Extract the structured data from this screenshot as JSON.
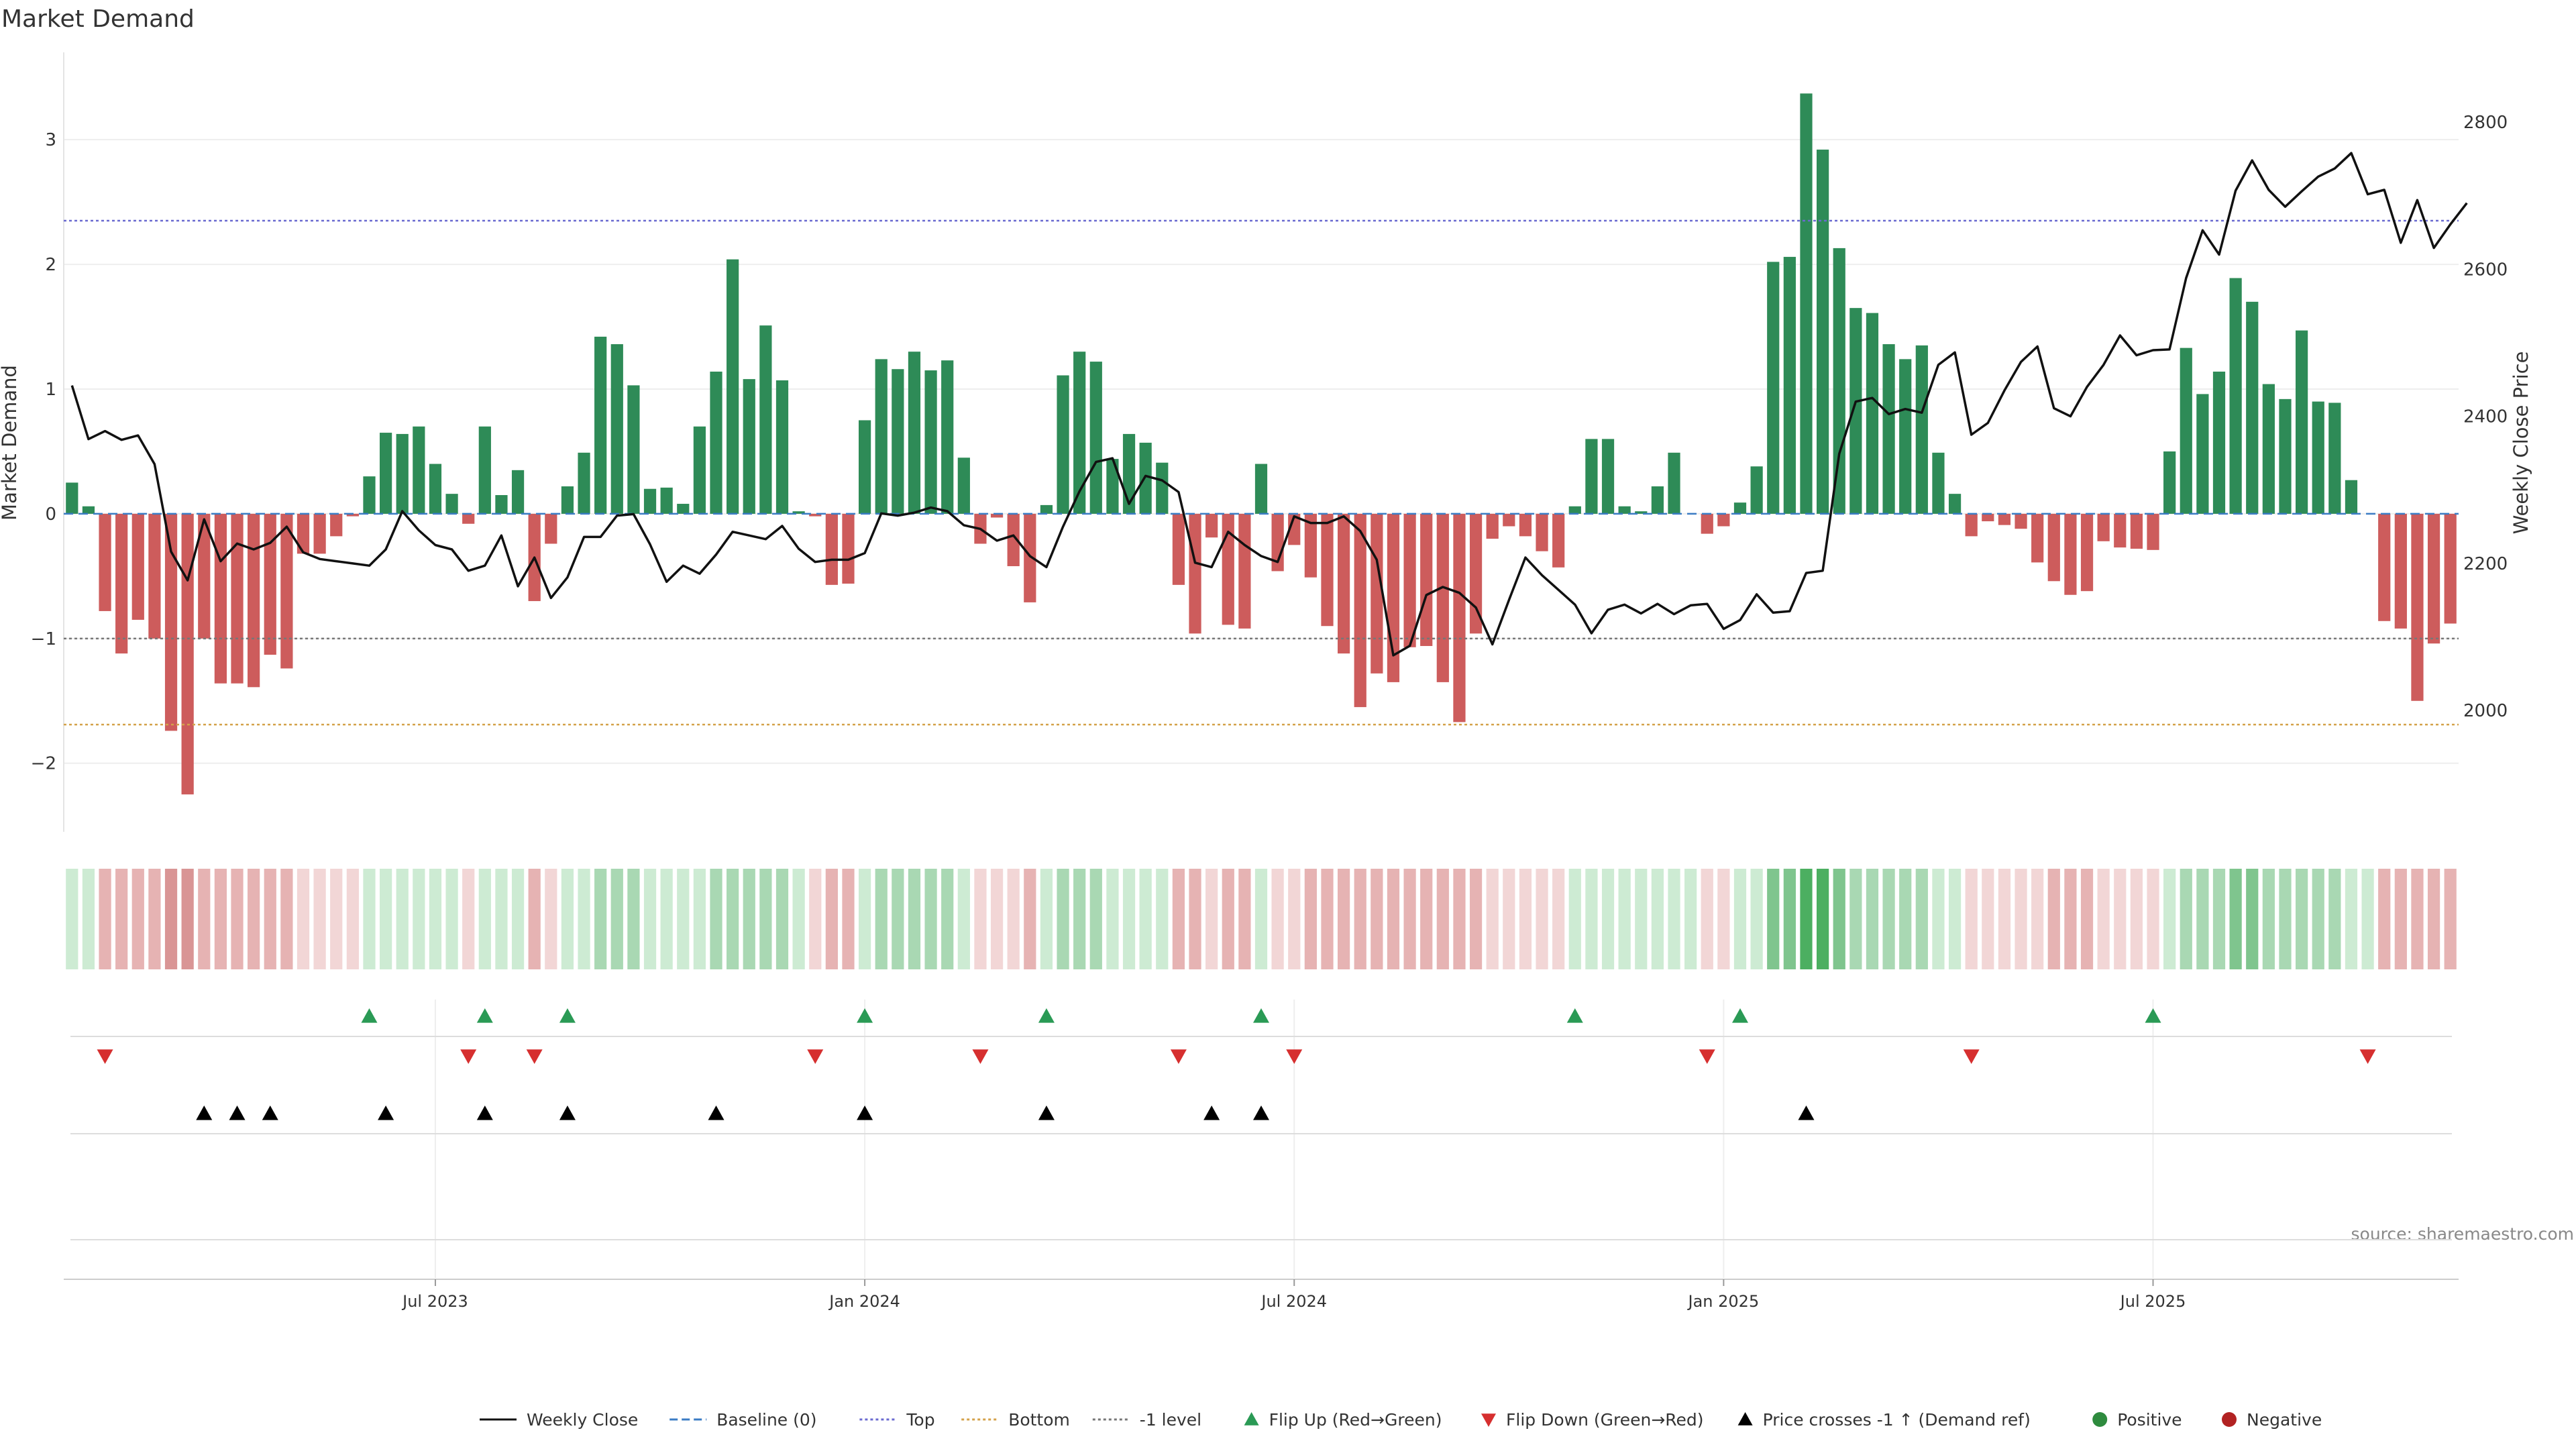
{
  "chart_data": {
    "type": "bar+line",
    "title": "Market Demand",
    "ylabel_left": "Market Demand",
    "ylabel_right": "Weekly Close Price",
    "source": "source: sharemaestro.com",
    "left_axis": {
      "range": [
        -2.55,
        3.7
      ],
      "ticks": [
        3,
        2,
        1,
        0,
        -1,
        -2
      ],
      "tick_labels": [
        "3",
        "2",
        "1",
        "0",
        "−1",
        "−2"
      ]
    },
    "right_axis": {
      "range": [
        1835,
        2895
      ],
      "ticks": [
        2800,
        2600,
        2400,
        2200,
        2000
      ],
      "tick_labels": [
        "2800",
        "2600",
        "2400",
        "2200",
        "2000"
      ]
    },
    "x_axis": {
      "type": "week_index",
      "weeks": 144,
      "tick_weeks": [
        22,
        48,
        74,
        100,
        126
      ],
      "tick_labels": [
        "Jul 2023",
        "Jan 2024",
        "Jul 2024",
        "Jan 2025",
        "Jul 2025"
      ]
    },
    "reference_lines": {
      "baseline": 0,
      "top": 2.35,
      "bottom": -1.69,
      "minus_one_level": -1.0
    },
    "bars": [
      0.25,
      0.06,
      -0.78,
      -1.12,
      -0.85,
      -1.0,
      -1.74,
      -2.25,
      -1.0,
      -1.36,
      -1.36,
      -1.39,
      -1.13,
      -1.24,
      -0.32,
      -0.32,
      -0.18,
      -0.02,
      0.3,
      0.65,
      0.64,
      0.7,
      0.4,
      0.16,
      -0.08,
      0.7,
      0.15,
      0.35,
      -0.7,
      -0.24,
      0.22,
      0.49,
      1.42,
      1.36,
      1.03,
      0.2,
      0.21,
      0.08,
      0.7,
      1.14,
      2.04,
      1.08,
      1.51,
      1.07,
      0.02,
      -0.02,
      -0.57,
      -0.56,
      0.75,
      1.24,
      1.16,
      1.3,
      1.15,
      1.23,
      0.45,
      -0.24,
      -0.03,
      -0.42,
      -0.71,
      0.07,
      1.11,
      1.3,
      1.22,
      0.44,
      0.64,
      0.57,
      0.41,
      -0.57,
      -0.96,
      -0.19,
      -0.89,
      -0.92,
      0.4,
      -0.46,
      -0.25,
      -0.51,
      -0.9,
      -1.12,
      -1.55,
      -1.28,
      -1.35,
      -1.07,
      -1.06,
      -1.35,
      -1.67,
      -0.96,
      -0.2,
      -0.1,
      -0.18,
      -0.3,
      -0.43,
      0.06,
      0.6,
      0.6,
      0.06,
      0.02,
      0.22,
      0.49,
      0.0,
      -0.16,
      -0.1,
      0.09,
      0.38,
      2.02,
      2.06,
      3.37,
      2.92,
      2.13,
      1.65,
      1.61,
      1.36,
      1.24,
      1.35,
      0.49,
      0.16,
      -0.18,
      -0.06,
      -0.09,
      -0.12,
      -0.39,
      -0.54,
      -0.65,
      -0.62,
      -0.22,
      -0.27,
      -0.28,
      -0.29,
      0.5,
      1.33,
      0.96,
      1.14,
      1.89,
      1.7,
      1.04,
      0.92,
      1.47,
      0.9,
      0.89,
      0.27,
      0.0,
      -0.86,
      -0.92,
      -1.5,
      -1.04,
      -0.88
    ],
    "series": [
      {
        "name": "Weekly Close",
        "axis": "right",
        "values": [
          2442,
          2369,
          2380,
          2368,
          2374,
          2335,
          2216,
          2177,
          2260,
          2203,
          2227,
          2219,
          2228,
          2250,
          2215,
          2206,
          2203,
          2200,
          2197,
          2219,
          2271,
          2245,
          2225,
          2219,
          2190,
          2197,
          2238,
          2169,
          2208,
          2153,
          2181,
          2236,
          2236,
          2265,
          2267,
          2226,
          2175,
          2197,
          2186,
          2212,
          2243,
          2238,
          2233,
          2251,
          2220,
          2202,
          2205,
          2205,
          2214,
          2268,
          2265,
          2269,
          2276,
          2271,
          2252,
          2247,
          2231,
          2238,
          2210,
          2195,
          2250,
          2298,
          2338,
          2343,
          2281,
          2319,
          2313,
          2297,
          2201,
          2195,
          2243,
          2225,
          2210,
          2202,
          2264,
          2255,
          2255,
          2264,
          2244,
          2205,
          2075,
          2088,
          2157,
          2168,
          2160,
          2140,
          2090,
          2150,
          2208,
          2184,
          2164,
          2144,
          2105,
          2137,
          2144,
          2132,
          2145,
          2131,
          2143,
          2145,
          2111,
          2123,
          2158,
          2133,
          2135,
          2187,
          2190,
          2349,
          2420,
          2425,
          2403,
          2410,
          2405,
          2470,
          2487,
          2375,
          2391,
          2435,
          2474,
          2495,
          2411,
          2400,
          2440,
          2470,
          2510,
          2483,
          2490,
          2491,
          2588,
          2653,
          2620,
          2707,
          2748,
          2708,
          2685,
          2706,
          2726,
          2737,
          2758,
          2702,
          2708,
          2636,
          2694,
          2629,
          2661,
          2690
        ]
      }
    ],
    "strip_levels": [
      1,
      1,
      2,
      2,
      2,
      2,
      3,
      3,
      2,
      2,
      2,
      2,
      2,
      2,
      1,
      1,
      1,
      1,
      1,
      1,
      1,
      1,
      1,
      1,
      1,
      1,
      1,
      1,
      2,
      1,
      1,
      1,
      2,
      2,
      2,
      1,
      1,
      1,
      1,
      2,
      2,
      2,
      2,
      2,
      1,
      1,
      2,
      2,
      1,
      2,
      2,
      2,
      2,
      2,
      1,
      1,
      1,
      1,
      2,
      1,
      2,
      2,
      2,
      1,
      1,
      1,
      1,
      2,
      2,
      1,
      2,
      2,
      1,
      1,
      1,
      2,
      2,
      2,
      2,
      2,
      2,
      2,
      2,
      2,
      2,
      2,
      1,
      1,
      1,
      1,
      1,
      1,
      1,
      1,
      1,
      1,
      1,
      1,
      1,
      1,
      1,
      1,
      1,
      3,
      3,
      4,
      4,
      3,
      2,
      2,
      2,
      2,
      2,
      1,
      1,
      1,
      1,
      1,
      1,
      1,
      2,
      2,
      2,
      1,
      1,
      1,
      1,
      1,
      2,
      2,
      2,
      3,
      3,
      2,
      2,
      2,
      2,
      2,
      1,
      1,
      2,
      2,
      2,
      2,
      2
    ],
    "flip_up_weeks": [
      18,
      25,
      30,
      48,
      59,
      72,
      91,
      101,
      126
    ],
    "flip_down_weeks": [
      2,
      24,
      28,
      45,
      55,
      67,
      74,
      99,
      115,
      139
    ],
    "price_cross_weeks": [
      8,
      10,
      12,
      19,
      25,
      30,
      39,
      48,
      59,
      69,
      72,
      105
    ],
    "legend": [
      {
        "label": "Weekly Close",
        "kind": "line-solid",
        "color": "#111111"
      },
      {
        "label": "Baseline (0)",
        "kind": "line-dashed",
        "color": "#3b7cc4"
      },
      {
        "label": "Top",
        "kind": "line-dotted",
        "color": "#6a6ad0"
      },
      {
        "label": "Bottom",
        "kind": "line-dotted",
        "color": "#d4a24a"
      },
      {
        "label": "-1 level",
        "kind": "line-dotted",
        "color": "#777777"
      },
      {
        "label": "Flip Up (Red→Green)",
        "kind": "triangle-up",
        "color": "#2a9a55"
      },
      {
        "label": "Flip Down (Green→Red)",
        "kind": "triangle-down",
        "color": "#d62f2f"
      },
      {
        "label": "Price crosses -1 ↑ (Demand ref)",
        "kind": "triangle-up",
        "color": "#000000"
      },
      {
        "label": "Positive",
        "kind": "dot",
        "color": "#2e8b3e"
      },
      {
        "label": "Negative",
        "kind": "dot",
        "color": "#b22222"
      }
    ]
  },
  "colors": {
    "positive_bar": "#2e8b57",
    "negative_bar": "#cd5c5c",
    "strip_green": [
      "#cdebd3",
      "#a9d8b3",
      "#7fc58e",
      "#4caf61"
    ],
    "strip_red": [
      "#f2d6d6",
      "#e6b3b3",
      "#d99595",
      "#c97474"
    ]
  }
}
